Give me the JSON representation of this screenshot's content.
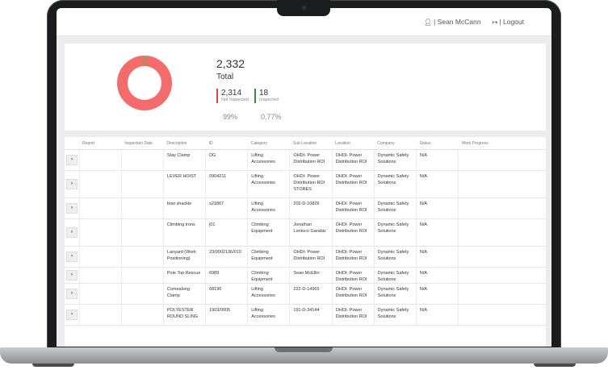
{
  "header": {
    "user_name": "| Sean McCann",
    "logout_label": "| Logout"
  },
  "summary": {
    "total_value": "2,332",
    "total_label": "Total",
    "not_inspected": {
      "value": "2,314",
      "label": "Not Inspected",
      "percent": "99%",
      "color": "#e0453f"
    },
    "inspected": {
      "value": "18",
      "label": "Inspected",
      "percent": "0.77%",
      "color": "#3a8f3a"
    }
  },
  "table": {
    "columns": [
      "",
      "Report",
      "Inspection Date",
      "Description",
      "ID",
      "Category",
      "Sub Location",
      "Location",
      "Company",
      "Status",
      "Work Progress"
    ],
    "rows": [
      [
        "",
        "",
        "",
        "Stay Clamp",
        "DG",
        "Lifting Accessories",
        "OHDI- Power Distribution ROI",
        "OHDI- Power Distribution ROI",
        "Dynamic Safety Solutions",
        "N/A",
        ""
      ],
      [
        "",
        "",
        "",
        "LEVER HOIST",
        "0904211",
        "Lifting Accessories",
        "OHDI- Power Distribution ROI STORES",
        "OHDI- Power Distribution ROI",
        "Dynamic Safety Solutions",
        "N/A",
        ""
      ],
      [
        "",
        "",
        "",
        "bow shackle",
        "s21867",
        "Lifting Accessories",
        "202-D-10826",
        "OHDI- Power Distribution ROI",
        "Dynamic Safety Solutions",
        "N/A",
        ""
      ],
      [
        "",
        "",
        "",
        "Climbing irons",
        "j01",
        "Climbing Equipment",
        "Jonathan Lontoco Garabiz",
        "OHDI- Power Distribution ROI",
        "Dynamic Safety Solutions",
        "N/A",
        ""
      ],
      [
        "",
        "",
        "",
        "Lanyard (Work Positioning)",
        "23/0002136/010",
        "Climbing Equipment",
        "OHDI- Power Distribution ROI",
        "OHDI- Power Distribution ROI",
        "Dynamic Safety Solutions",
        "N/A",
        ""
      ],
      [
        "",
        "",
        "",
        "Pole Top Rescue",
        "6989",
        "Climbing Equipment",
        "Sean McEllin",
        "OHDI- Power Distribution ROI",
        "Dynamic Safety Solutions",
        "N/A",
        ""
      ],
      [
        "",
        "",
        "",
        "Comealong Clamp",
        "68190",
        "Lifting Accessories",
        "222-D-14965",
        "OHDI- Power Distribution ROI",
        "Dynamic Safety Solutions",
        "N/A",
        ""
      ],
      [
        "",
        "",
        "",
        "POLYESTER ROUND SLING",
        "1903/0005",
        "Lifting Accessories",
        "191-D-34144",
        "OHDI- Power Distribution ROI",
        "Dynamic Safety Solutions",
        "N/A",
        ""
      ]
    ],
    "expand_icon": "chevron-right-icon"
  },
  "colors": {
    "donut_not_inspected": "#f36b6b",
    "donut_inspected": "#5cb85c"
  }
}
